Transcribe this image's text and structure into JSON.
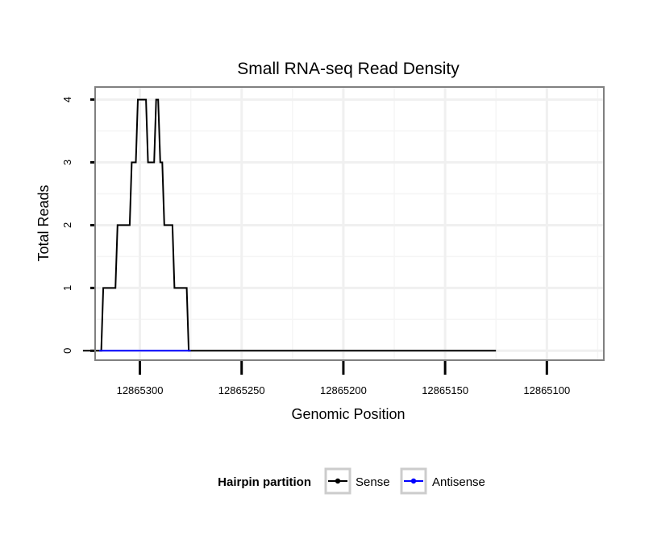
{
  "chart_data": {
    "type": "line",
    "title": "Small RNA-seq Read Density",
    "xlabel": "Genomic Position",
    "ylabel": "Total Reads",
    "xlim": [
      12865322,
      12865072
    ],
    "x_reversed": true,
    "ylim": [
      -0.15,
      4.2
    ],
    "x_ticks": [
      12865300,
      12865250,
      12865200,
      12865150,
      12865100
    ],
    "x_tick_labels": [
      "12865300",
      "12865250",
      "12865200",
      "12865150",
      "12865100"
    ],
    "y_ticks": [
      0,
      1,
      2,
      3,
      4
    ],
    "y_tick_labels": [
      "0",
      "1",
      "2",
      "3",
      "4"
    ],
    "grid": true,
    "legend": {
      "title": "Hairpin partition",
      "position": "bottom",
      "entries": [
        {
          "label": "Sense",
          "color": "#000000"
        },
        {
          "label": "Antisense",
          "color": "#0000ff"
        }
      ]
    },
    "series": [
      {
        "name": "Sense",
        "color": "#000000",
        "x": [
          12865328,
          12865319,
          12865318,
          12865312,
          12865311,
          12865305,
          12865304,
          12865302,
          12865301,
          12865297,
          12865296,
          12865293,
          12865292,
          12865291,
          12865290,
          12865289,
          12865288,
          12865284,
          12865283,
          12865277,
          12865276,
          12865275,
          12865125
        ],
        "values": [
          0,
          0,
          1,
          1,
          2,
          2,
          3,
          3,
          4,
          4,
          3,
          3,
          4,
          4,
          3,
          3,
          2,
          2,
          1,
          1,
          0,
          0,
          0
        ]
      },
      {
        "name": "Antisense",
        "color": "#0000ff",
        "x": [
          12865320,
          12865275
        ],
        "values": [
          0,
          0
        ]
      }
    ]
  }
}
